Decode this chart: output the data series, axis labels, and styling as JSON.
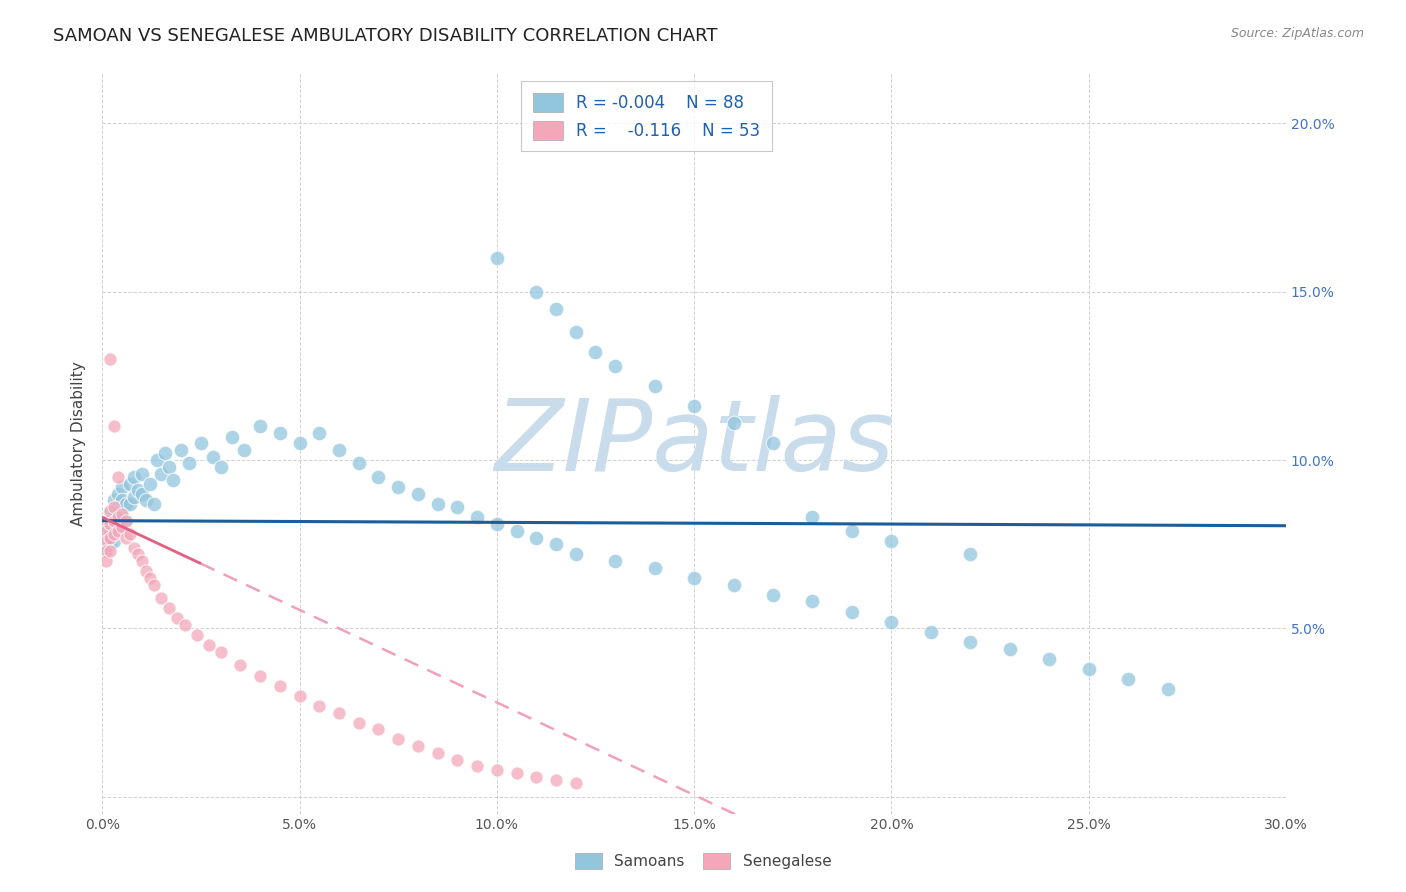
{
  "title": "SAMOAN VS SENEGALESE AMBULATORY DISABILITY CORRELATION CHART",
  "source": "Source: ZipAtlas.com",
  "ylabel": "Ambulatory Disability",
  "xlim": [
    0.0,
    0.3
  ],
  "ylim": [
    -0.02,
    0.215
  ],
  "plot_ylim": [
    -0.005,
    0.215
  ],
  "xticks": [
    0.0,
    0.05,
    0.1,
    0.15,
    0.2,
    0.25,
    0.3
  ],
  "yticks": [
    0.0,
    0.05,
    0.1,
    0.15,
    0.2
  ],
  "right_ytick_labels": [
    "",
    "5.0%",
    "10.0%",
    "15.0%",
    "20.0%"
  ],
  "xtick_labels": [
    "0.0%",
    "5.0%",
    "10.0%",
    "15.0%",
    "20.0%",
    "25.0%",
    "30.0%"
  ],
  "legend_r_samoan": "-0.004",
  "legend_n_samoan": "88",
  "legend_r_senegalese": "-0.116",
  "legend_n_senegalese": "53",
  "samoan_color": "#92C5DE",
  "senegalese_color": "#F4A7B9",
  "samoan_line_color": "#1B5E99",
  "senegalese_solid_color": "#E06080",
  "senegalese_dash_color": "#F0A0B8",
  "background_color": "#FFFFFF",
  "watermark": "ZIPatlas",
  "watermark_color_r": 200,
  "watermark_color_g": 220,
  "watermark_color_b": 235,
  "samoan_x": [
    0.001,
    0.001,
    0.001,
    0.001,
    0.002,
    0.002,
    0.002,
    0.002,
    0.003,
    0.003,
    0.003,
    0.003,
    0.004,
    0.004,
    0.004,
    0.005,
    0.005,
    0.005,
    0.006,
    0.006,
    0.007,
    0.007,
    0.008,
    0.008,
    0.009,
    0.01,
    0.01,
    0.011,
    0.012,
    0.013,
    0.014,
    0.015,
    0.016,
    0.017,
    0.018,
    0.02,
    0.022,
    0.025,
    0.028,
    0.03,
    0.033,
    0.036,
    0.04,
    0.045,
    0.05,
    0.055,
    0.06,
    0.065,
    0.07,
    0.075,
    0.08,
    0.085,
    0.09,
    0.095,
    0.1,
    0.105,
    0.11,
    0.115,
    0.12,
    0.13,
    0.14,
    0.15,
    0.16,
    0.17,
    0.18,
    0.19,
    0.2,
    0.21,
    0.22,
    0.23,
    0.24,
    0.25,
    0.26,
    0.27,
    0.18,
    0.19,
    0.2,
    0.22,
    0.1,
    0.11,
    0.115,
    0.12,
    0.125,
    0.13,
    0.14,
    0.15,
    0.16,
    0.17
  ],
  "samoan_y": [
    0.082,
    0.079,
    0.076,
    0.073,
    0.085,
    0.082,
    0.078,
    0.075,
    0.088,
    0.084,
    0.08,
    0.076,
    0.09,
    0.086,
    0.082,
    0.092,
    0.088,
    0.083,
    0.087,
    0.082,
    0.093,
    0.087,
    0.095,
    0.089,
    0.091,
    0.096,
    0.09,
    0.088,
    0.093,
    0.087,
    0.1,
    0.096,
    0.102,
    0.098,
    0.094,
    0.103,
    0.099,
    0.105,
    0.101,
    0.098,
    0.107,
    0.103,
    0.11,
    0.108,
    0.105,
    0.108,
    0.103,
    0.099,
    0.095,
    0.092,
    0.09,
    0.087,
    0.086,
    0.083,
    0.081,
    0.079,
    0.077,
    0.075,
    0.072,
    0.07,
    0.068,
    0.065,
    0.063,
    0.06,
    0.058,
    0.055,
    0.052,
    0.049,
    0.046,
    0.044,
    0.041,
    0.038,
    0.035,
    0.032,
    0.083,
    0.079,
    0.076,
    0.072,
    0.16,
    0.15,
    0.145,
    0.138,
    0.132,
    0.128,
    0.122,
    0.116,
    0.111,
    0.105
  ],
  "senegalese_x": [
    0.001,
    0.001,
    0.001,
    0.001,
    0.001,
    0.002,
    0.002,
    0.002,
    0.002,
    0.003,
    0.003,
    0.003,
    0.004,
    0.004,
    0.005,
    0.005,
    0.006,
    0.006,
    0.007,
    0.008,
    0.009,
    0.01,
    0.011,
    0.012,
    0.013,
    0.015,
    0.017,
    0.019,
    0.021,
    0.024,
    0.027,
    0.03,
    0.035,
    0.04,
    0.045,
    0.05,
    0.055,
    0.06,
    0.065,
    0.07,
    0.075,
    0.08,
    0.085,
    0.09,
    0.095,
    0.1,
    0.105,
    0.11,
    0.115,
    0.12,
    0.002,
    0.003,
    0.004
  ],
  "senegalese_y": [
    0.082,
    0.079,
    0.076,
    0.073,
    0.07,
    0.085,
    0.081,
    0.077,
    0.073,
    0.086,
    0.082,
    0.078,
    0.083,
    0.079,
    0.084,
    0.08,
    0.082,
    0.077,
    0.078,
    0.074,
    0.072,
    0.07,
    0.067,
    0.065,
    0.063,
    0.059,
    0.056,
    0.053,
    0.051,
    0.048,
    0.045,
    0.043,
    0.039,
    0.036,
    0.033,
    0.03,
    0.027,
    0.025,
    0.022,
    0.02,
    0.017,
    0.015,
    0.013,
    0.011,
    0.009,
    0.008,
    0.007,
    0.006,
    0.005,
    0.004,
    0.13,
    0.11,
    0.095
  ]
}
